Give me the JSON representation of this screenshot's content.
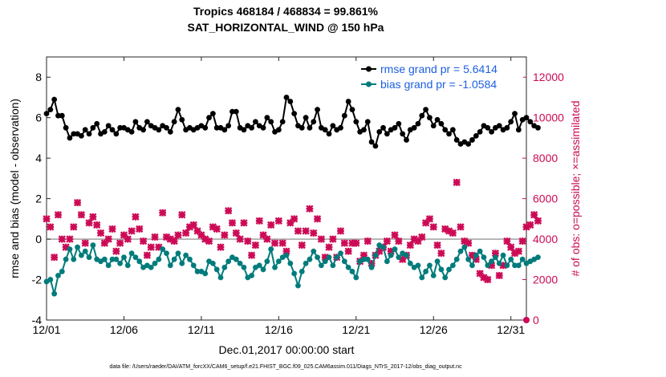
{
  "chart_data": {
    "type": "line",
    "title": "Tropics 468184 / 468834 = 99.861%",
    "subtitle": "SAT_HORIZONTAL_WIND @ 150 hPa",
    "xlabel": "Dec.01,2017 00:00:00 start",
    "ylabel_left": "rmse and bias (model - observation)",
    "ylabel_right": "# of obs: o=possible; ×=assimilated",
    "footer": "data file: /Users/raeder/DAI/ATM_forcXX/CAM6_setup/f.e21.FHIST_BGC.f09_025.CAM6assim.011/Diags_NTrS_2017-12/obs_diag_output.nc",
    "x_ticks": [
      0,
      5,
      10,
      15,
      20,
      25,
      30
    ],
    "x_tick_labels": [
      "12/01",
      "12/06",
      "12/11",
      "12/16",
      "12/21",
      "12/26",
      "12/31"
    ],
    "xlim": [
      0,
      31
    ],
    "ylim_left": [
      -4,
      9
    ],
    "y_ticks_left": [
      -4,
      -2,
      0,
      2,
      4,
      6,
      8
    ],
    "ylim_right": [
      0,
      13000
    ],
    "y_ticks_right": [
      0,
      2000,
      4000,
      6000,
      8000,
      10000,
      12000
    ],
    "zero_line": 0,
    "legend": {
      "position": "top-right",
      "entries": [
        "rmse grand pr = 5.6414",
        "bias grand pr = -1.0584"
      ]
    },
    "colors": {
      "rmse": "#000000",
      "bias": "#007b7b",
      "obs": "#cc0a55",
      "zero_line": "#a0a0a0",
      "legend_text": "#1d5fe0"
    },
    "series": [
      {
        "name": "rmse grand pr = 5.6414",
        "axis": "left",
        "marker": "dot",
        "x_start": 0,
        "x_step": 0.25,
        "values": [
          6.2,
          6.4,
          6.9,
          6.1,
          6.1,
          5.5,
          5.0,
          5.2,
          5.2,
          5.1,
          5.4,
          5.2,
          5.5,
          5.7,
          5.2,
          5.3,
          5.6,
          5.4,
          5.2,
          5.5,
          5.5,
          5.4,
          5.3,
          5.8,
          5.5,
          5.4,
          5.8,
          5.6,
          5.5,
          5.4,
          5.6,
          5.5,
          5.3,
          5.8,
          6.4,
          5.9,
          5.4,
          5.5,
          5.4,
          5.5,
          5.6,
          5.5,
          6.0,
          6.2,
          5.5,
          5.5,
          5.4,
          5.6,
          6.3,
          6.3,
          5.5,
          5.4,
          5.6,
          5.5,
          5.8,
          5.6,
          5.5,
          6.0,
          5.8,
          5.3,
          5.4,
          5.8,
          7.0,
          6.8,
          6.2,
          5.6,
          5.5,
          6.0,
          5.5,
          5.8,
          6.4,
          5.5,
          5.4,
          5.2,
          5.6,
          5.4,
          5.5,
          6.1,
          6.8,
          6.4,
          5.8,
          5.3,
          5.4,
          5.8,
          4.8,
          4.6,
          5.3,
          5.5,
          5.2,
          5.4,
          5.5,
          5.7,
          5.2,
          4.9,
          5.4,
          5.5,
          5.7,
          6.1,
          6.4,
          6.0,
          5.6,
          5.9,
          5.7,
          5.4,
          5.2,
          5.4,
          4.9,
          4.7,
          4.8,
          4.7,
          4.9,
          5.1,
          5.3,
          5.6,
          5.5,
          5.3,
          5.5,
          5.6,
          5.4,
          5.5,
          5.8,
          6.2,
          5.4,
          5.9,
          6.0,
          5.8,
          5.6,
          5.5
        ]
      },
      {
        "name": "bias grand pr = -1.0584",
        "axis": "left",
        "marker": "dot",
        "x_start": 0,
        "x_step": 0.25,
        "values": [
          -2.1,
          -2.0,
          -2.7,
          -1.8,
          -1.6,
          -1.0,
          -0.5,
          -1.0,
          -0.4,
          -0.8,
          -0.6,
          -0.9,
          -0.3,
          -1.0,
          -1.1,
          -1.0,
          -1.3,
          -1.0,
          -1.0,
          -1.2,
          -0.9,
          -1.3,
          -0.7,
          -0.9,
          -1.1,
          -1.4,
          -1.3,
          -1.4,
          -1.2,
          -1.0,
          -0.5,
          -0.7,
          -1.3,
          -1.0,
          -0.7,
          -1.2,
          -0.8,
          -1.0,
          -1.3,
          -1.6,
          -1.6,
          -1.7,
          -1.1,
          -1.2,
          -1.5,
          -1.9,
          -1.4,
          -1.1,
          -0.9,
          -1.0,
          -1.2,
          -1.4,
          -1.9,
          -1.8,
          -1.4,
          -1.3,
          -1.5,
          -1.1,
          -0.5,
          -1.4,
          -1.1,
          -0.9,
          -0.8,
          -1.2,
          -1.7,
          -2.3,
          -1.6,
          -1.2,
          -1.0,
          -0.6,
          -0.9,
          -1.3,
          -1.1,
          -0.9,
          -1.3,
          -0.9,
          -0.7,
          -1.1,
          -1.4,
          -1.6,
          -1.9,
          -1.1,
          -1.0,
          -1.0,
          -1.4,
          -0.8,
          -0.3,
          -0.4,
          -1.1,
          -0.8,
          -0.5,
          -0.9,
          -0.7,
          -0.8,
          -1.2,
          -1.4,
          -1.3,
          -1.9,
          -1.6,
          -1.3,
          -1.8,
          -1.1,
          -1.5,
          -1.9,
          -1.5,
          -1.3,
          -1.0,
          -0.6,
          -0.4,
          -1.0,
          -1.3,
          -0.8,
          -0.6,
          -0.9,
          -1.3,
          -1.1,
          -0.9,
          -1.2,
          -0.8,
          -1.3,
          -1.0,
          -1.3,
          -1.3,
          -1.0,
          -1.2,
          -1.1,
          -1.0,
          -0.9
        ]
      },
      {
        "name": "obs assimilated",
        "axis": "right",
        "marker": "x",
        "x_start": 0,
        "x_step": 0.25,
        "values": [
          5000,
          4600,
          3100,
          5200,
          4000,
          3600,
          4000,
          4600,
          5800,
          5200,
          3800,
          4800,
          5100,
          4700,
          4300,
          3800,
          4000,
          4500,
          3400,
          3800,
          4200,
          4000,
          4400,
          5100,
          4500,
          3900,
          3200,
          3600,
          4100,
          3600,
          5300,
          4100,
          4000,
          3900,
          4200,
          5200,
          4300,
          4600,
          4700,
          4400,
          4200,
          4000,
          3900,
          4600,
          4500,
          3600,
          4200,
          5400,
          4800,
          4300,
          4000,
          4800,
          3900,
          3200,
          3700,
          4900,
          4200,
          4000,
          4700,
          3800,
          4900,
          3800,
          3400,
          4800,
          5000,
          4400,
          3700,
          4400,
          5500,
          4300,
          5000,
          4000,
          3100,
          3600,
          4000,
          3100,
          4400,
          3800,
          3400,
          3800,
          3800,
          2900,
          3200,
          3900,
          2800,
          3200,
          3400,
          3600,
          3900,
          3400,
          4200,
          3900,
          3000,
          3200,
          3700,
          4000,
          3900,
          4100,
          4800,
          5000,
          4600,
          3700,
          3300,
          4500,
          4400,
          4300,
          6800,
          4600,
          3900,
          3800,
          3200,
          3000,
          2300,
          2100,
          2000,
          2700,
          3300,
          2200,
          2700,
          3900,
          3600,
          3300,
          3400,
          3900,
          4600,
          4700,
          5200,
          4900
        ]
      },
      {
        "name": "obs possible (final)",
        "axis": "right",
        "marker": "o",
        "x_start": 31,
        "x_step": 0,
        "values": [
          0
        ]
      }
    ]
  }
}
